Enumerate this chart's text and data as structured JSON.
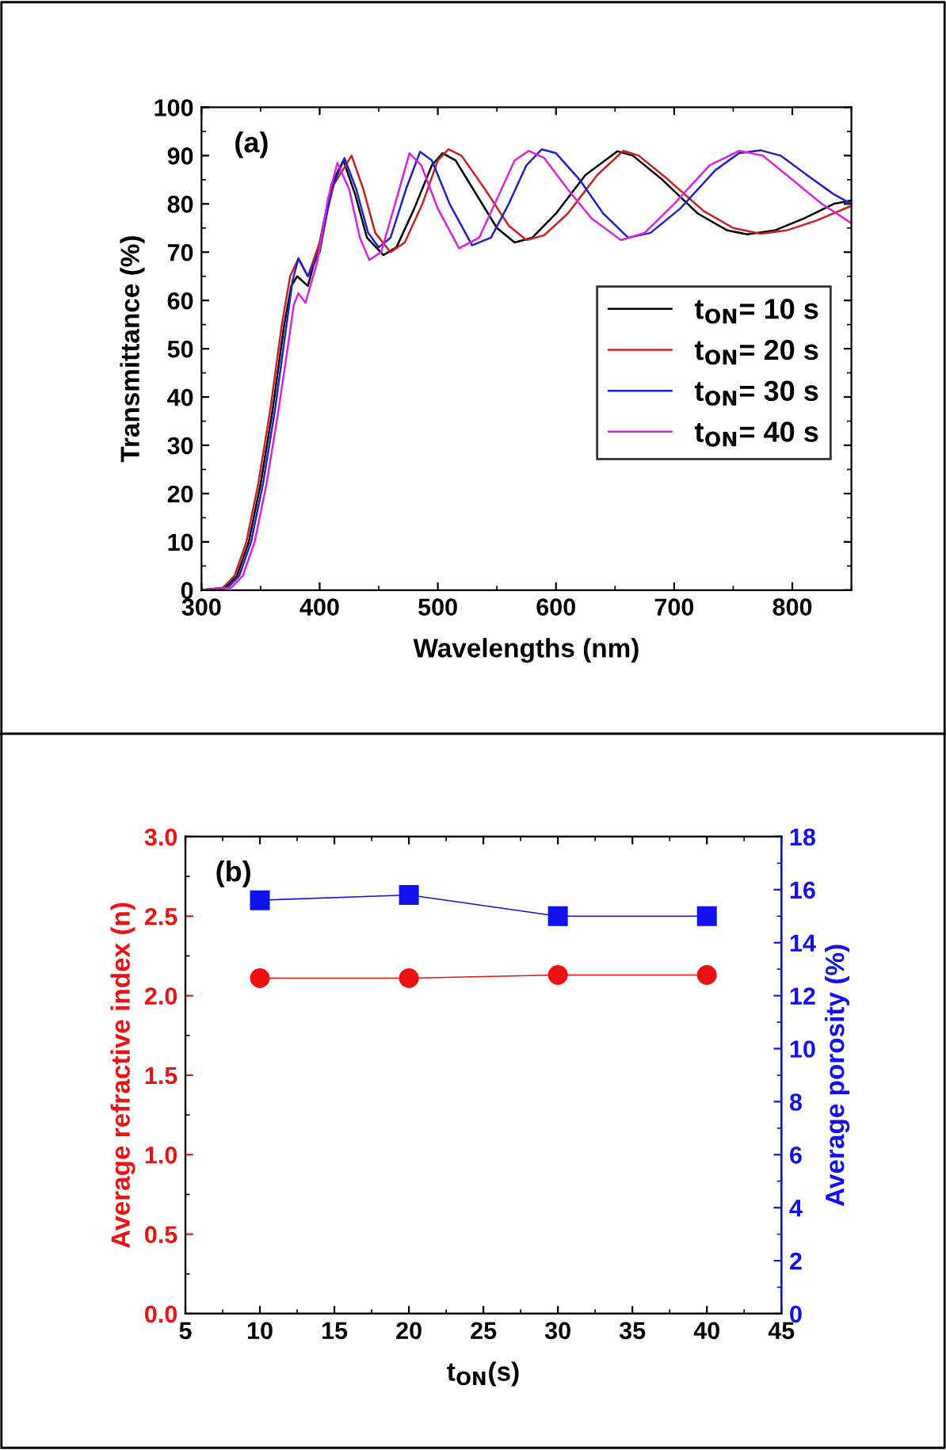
{
  "chart_data": [
    {
      "type": "line",
      "xlabel": "Wavelengths (nm)",
      "ylabel": "Transmittance (%)",
      "annotations": [
        "(a)"
      ],
      "xlim": [
        300,
        850
      ],
      "xticks": [
        300,
        400,
        500,
        600,
        700,
        800
      ],
      "ylim": [
        0,
        100
      ],
      "yticks": [
        0,
        10,
        20,
        30,
        40,
        50,
        60,
        70,
        80,
        90,
        100
      ],
      "legend": "right",
      "grid": false,
      "series": [
        {
          "name": "t$_{ON}$= 10 s",
          "color": "#000000",
          "x": [
            300,
            320,
            330,
            340,
            350,
            360,
            370,
            376,
            381,
            390,
            400,
            410,
            420,
            430,
            440,
            454,
            465,
            480,
            495,
            504,
            515,
            530,
            550,
            565,
            580,
            600,
            625,
            652,
            665,
            690,
            720,
            745,
            762,
            785,
            810,
            835,
            850
          ],
          "values": [
            0,
            0.5,
            3,
            10,
            22,
            37,
            55,
            63,
            65,
            63,
            72,
            84,
            89,
            82,
            73,
            69.4,
            71,
            79,
            88,
            90.5,
            89,
            83,
            75,
            72,
            73,
            78,
            86,
            90.9,
            90,
            85,
            78,
            74.5,
            73.7,
            74.5,
            77,
            80,
            80.7
          ]
        },
        {
          "name": "t$_{ON}$= 20 s",
          "color": "#cc2020",
          "x": [
            300,
            318,
            328,
            338,
            348,
            358,
            368,
            375,
            382,
            390,
            400,
            412,
            427,
            437,
            447,
            460,
            472,
            487,
            500,
            509,
            520,
            540,
            560,
            575,
            590,
            610,
            635,
            657,
            670,
            695,
            725,
            750,
            773,
            795,
            820,
            850
          ],
          "values": [
            0,
            0.5,
            3,
            10,
            22,
            37,
            55,
            65,
            68.7,
            65,
            72,
            84,
            90,
            83,
            74,
            70,
            72,
            80,
            89,
            91.3,
            90,
            83,
            75.5,
            72.5,
            73.5,
            78,
            86,
            91,
            90,
            85,
            78.5,
            75,
            73.8,
            74.5,
            76.5,
            79.6
          ]
        },
        {
          "name": "t$_{ON}$= 30 s",
          "color": "#2020cc",
          "x": [
            300,
            322,
            332,
            342,
            352,
            362,
            372,
            377,
            382,
            390,
            400,
            410,
            421,
            431,
            441,
            450,
            460,
            473,
            485,
            495,
            510,
            529,
            545,
            560,
            575,
            588,
            600,
            620,
            640,
            661,
            680,
            705,
            735,
            755,
            773,
            790,
            815,
            835,
            850
          ],
          "values": [
            0,
            0.5,
            3,
            10,
            22,
            37,
            55,
            64,
            68.7,
            65,
            70,
            83,
            89.5,
            83,
            74,
            71,
            73,
            83,
            90.8,
            89,
            80,
            71.4,
            73,
            80,
            88,
            91.3,
            90.5,
            85,
            78,
            73,
            74,
            79,
            87,
            90.5,
            91.1,
            90,
            85.5,
            82,
            80
          ]
        },
        {
          "name": "t$_{ON}$= 40 s",
          "color": "#dd22dd",
          "x": [
            300,
            325,
            335,
            345,
            355,
            365,
            374,
            378,
            382,
            388,
            398,
            407,
            415,
            425,
            434,
            442,
            452,
            465,
            476,
            486,
            500,
            518,
            535,
            550,
            565,
            577,
            590,
            610,
            630,
            655,
            675,
            700,
            730,
            755,
            775,
            800,
            825,
            850
          ],
          "values": [
            0,
            0.5,
            3,
            10,
            22,
            37,
            52,
            59,
            61.5,
            59.5,
            68,
            81,
            88.5,
            83,
            73,
            68.4,
            70,
            81,
            90.5,
            88,
            79,
            70.8,
            73,
            81,
            89,
            91,
            89.5,
            83,
            77,
            72.5,
            74,
            80,
            88,
            91,
            90,
            85,
            80,
            76
          ]
        }
      ]
    },
    {
      "type": "line",
      "xlabel": "t$_{ON}$(s)",
      "ylabel": "Average refractive index (n)",
      "y2label": "Average porosity (%)",
      "annotations": [
        "(b)"
      ],
      "xlim": [
        5,
        45
      ],
      "xticks": [
        5,
        10,
        15,
        20,
        25,
        30,
        35,
        40,
        45
      ],
      "ylim": [
        0,
        3
      ],
      "yticks": [
        {
          "value": 0,
          "label": "0.0"
        },
        {
          "value": 0.5,
          "label": "0.5"
        },
        {
          "value": 1,
          "label": "1.0"
        },
        {
          "value": 1.5,
          "label": "1.5"
        },
        {
          "value": 2,
          "label": "2.0"
        },
        {
          "value": 2.5,
          "label": "2.5"
        },
        {
          "value": 3,
          "label": "3.0"
        }
      ],
      "y2lim": [
        0,
        18
      ],
      "y2ticks": [
        0,
        2,
        4,
        6,
        8,
        10,
        12,
        14,
        16,
        18
      ],
      "grid": false,
      "series": [
        {
          "color": "#ee1111",
          "marker": "circle",
          "x": [
            10,
            20,
            30,
            40
          ],
          "values": [
            2.11,
            2.11,
            2.13,
            2.13
          ]
        },
        {
          "color": "#1111ee",
          "marker": "square",
          "axis": "y2",
          "x": [
            10,
            20,
            30,
            40
          ],
          "values": [
            15.6,
            15.8,
            15.0,
            15.0
          ]
        }
      ]
    }
  ]
}
